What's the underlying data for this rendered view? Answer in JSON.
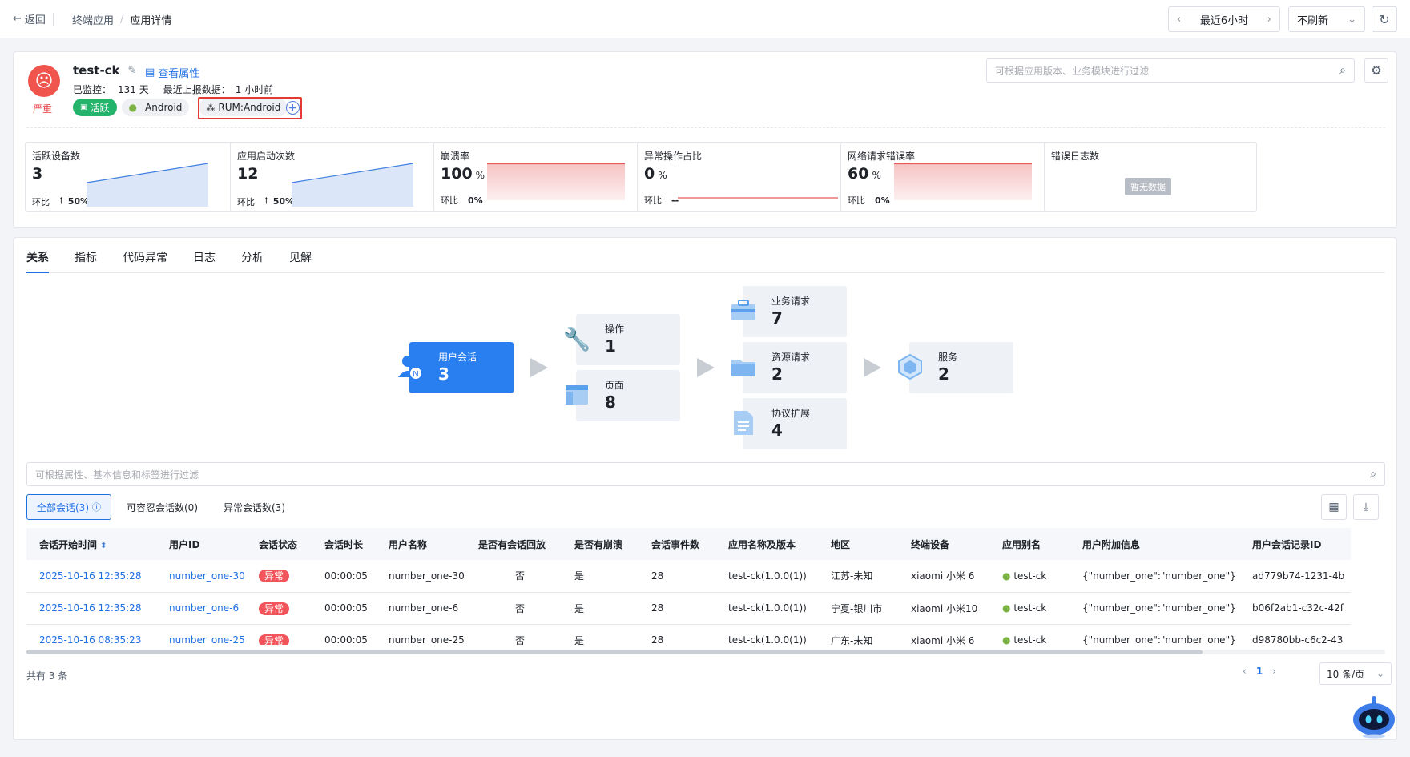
{
  "topbar": {
    "back_label": "返回",
    "breadcrumb": [
      "终端应用",
      "应用详情"
    ],
    "breadcrumb_sep": "/",
    "time_range": "最近6小时",
    "refresh": "不刷新"
  },
  "app": {
    "name": "test-ck",
    "severity": "严重",
    "view_attr": "查看属性",
    "monitored_label": "已监控：",
    "monitored_value": "131 天",
    "last_report_label": "最近上报数据：",
    "last_report_value": "1 小时前",
    "tags": [
      "活跃",
      "Android",
      "RUM:Android"
    ],
    "filter_placeholder": "可根据应用版本、业务模块进行过滤"
  },
  "metrics": [
    {
      "title": "活跃设备数",
      "value": "3",
      "unit": "",
      "ratio_label": "环比",
      "ratio": "50%",
      "trend": "up"
    },
    {
      "title": "应用启动次数",
      "value": "12",
      "unit": "",
      "ratio_label": "环比",
      "ratio": "50%",
      "trend": "up"
    },
    {
      "title": "崩溃率",
      "value": "100",
      "unit": "%",
      "ratio_label": "环比",
      "ratio": "0%",
      "trend": "flat"
    },
    {
      "title": "异常操作占比",
      "value": "0",
      "unit": "%",
      "ratio_label": "环比",
      "ratio": "--",
      "trend": "none"
    },
    {
      "title": "网络请求错误率",
      "value": "60",
      "unit": "%",
      "ratio_label": "环比",
      "ratio": "0%",
      "trend": "flat"
    },
    {
      "title": "错误日志数",
      "value": "",
      "unit": "",
      "ratio_label": "",
      "ratio": "",
      "nodata": "暂无数据"
    }
  ],
  "tabs": [
    "关系",
    "指标",
    "代码异常",
    "日志",
    "分析",
    "见解"
  ],
  "flow": {
    "session": {
      "label": "用户会话",
      "value": "3"
    },
    "action": {
      "label": "操作",
      "value": "1"
    },
    "page": {
      "label": "页面",
      "value": "8"
    },
    "biz_req": {
      "label": "业务请求",
      "value": "7"
    },
    "res_req": {
      "label": "资源请求",
      "value": "2"
    },
    "proto": {
      "label": "协议扩展",
      "value": "4"
    },
    "service": {
      "label": "服务",
      "value": "2"
    }
  },
  "search_placeholder": "可根据属性、基本信息和标签进行过滤",
  "session_tabs": [
    "全部会话(3)",
    "可容忍会话数(0)",
    "异常会话数(3)"
  ],
  "table": {
    "columns": [
      "会话开始时间",
      "用户ID",
      "会话状态",
      "会话时长",
      "用户名称",
      "是否有会话回放",
      "是否有崩溃",
      "会话事件数",
      "应用名称及版本",
      "地区",
      "终端设备",
      "应用别名",
      "用户附加信息",
      "用户会话记录ID"
    ],
    "rows": [
      [
        "2025-10-16 12:35:28",
        "number_one-30",
        "异常",
        "00:00:05",
        "number_one-30",
        "否",
        "是",
        "28",
        "test-ck(1.0.0(1))",
        "江苏-未知",
        "xiaomi 小米 6",
        "test-ck",
        "{\"number_one\":\"number_one\"}",
        "ad779b74-1231-4b"
      ],
      [
        "2025-10-16 12:35:28",
        "number_one-6",
        "异常",
        "00:00:05",
        "number_one-6",
        "否",
        "是",
        "28",
        "test-ck(1.0.0(1))",
        "宁夏-银川市",
        "xiaomi 小米10",
        "test-ck",
        "{\"number_one\":\"number_one\"}",
        "b06f2ab1-c32c-42f"
      ],
      [
        "2025-10-16 08:35:23",
        "number_one-25",
        "异常",
        "00:00:05",
        "number_one-25",
        "否",
        "是",
        "28",
        "test-ck(1.0.0(1))",
        "广东-未知",
        "xiaomi 小米 6",
        "test-ck",
        "{\"number_one\":\"number_one\"}",
        "d98780bb-c6c2-43"
      ]
    ]
  },
  "footer": {
    "total": "共有 3 条",
    "page": "1",
    "page_size": "10 条/页"
  },
  "colors": {
    "primary": "#1f6fe5",
    "danger": "#f2545b",
    "green": "#23b36b"
  }
}
